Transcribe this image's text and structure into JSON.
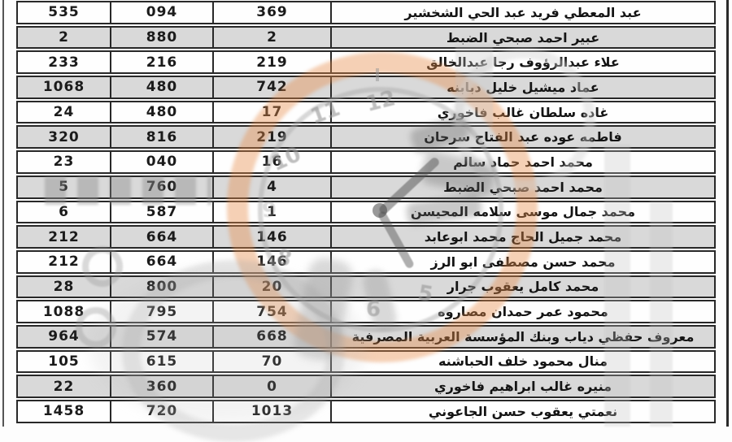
{
  "table": {
    "rows": [
      {
        "c1": "535",
        "c2": "094",
        "c3": "369",
        "name": "عبد المعطي فريد عبد الحي الشخشير"
      },
      {
        "c1": "2",
        "c2": "880",
        "c3": "2",
        "name": "عبير احمد صبحي الضبط"
      },
      {
        "c1": "233",
        "c2": "216",
        "c3": "219",
        "name": "علاء عبدالرؤوف رجا عبدالخالق"
      },
      {
        "c1": "1068",
        "c2": "480",
        "c3": "742",
        "name": "عماد ميشيل خليل دبابنه"
      },
      {
        "c1": "24",
        "c2": "480",
        "c3": "17",
        "name": "غاده سلطان غالب فاخوري"
      },
      {
        "c1": "320",
        "c2": "816",
        "c3": "219",
        "name": "فاطمه عوده عبد الفتاح سرحان"
      },
      {
        "c1": "23",
        "c2": "040",
        "c3": "16",
        "name": "محمد احمد حماد سالم"
      },
      {
        "c1": "5",
        "c2": "760",
        "c3": "4",
        "name": "محمد احمد صبحي الضبط"
      },
      {
        "c1": "6",
        "c2": "587",
        "c3": "1",
        "name": "محمد جمال موسى سلامه المحيسن"
      },
      {
        "c1": "212",
        "c2": "664",
        "c3": "146",
        "name": "محمد جميل الحاج محمد ابوعابد"
      },
      {
        "c1": "212",
        "c2": "664",
        "c3": "146",
        "name": "محمد حسن مصطفى ابو الرز"
      },
      {
        "c1": "28",
        "c2": "800",
        "c3": "20",
        "name": "محمد كامل يعقوب جرار"
      },
      {
        "c1": "1088",
        "c2": "795",
        "c3": "754",
        "name": "محمود عمر حمدان مصاروه"
      },
      {
        "c1": "964",
        "c2": "574",
        "c3": "668",
        "name": "معروف حفظي دياب وبنك المؤسسة العربية المصرفية"
      },
      {
        "c1": "105",
        "c2": "615",
        "c3": "70",
        "name": "منال محمود خلف الحباشنه"
      },
      {
        "c1": "22",
        "c2": "360",
        "c3": "0",
        "name": "منيره غالب ابراهيم فاخوري"
      },
      {
        "c1": "1458",
        "c2": "720",
        "c3": "1013",
        "name": "نعمتي يعقوب حسن الجاعوني"
      }
    ]
  },
  "watermark": {
    "clock_numbers": {
      "n12": "12",
      "n11": "11",
      "n10": "10",
      "n9": "9",
      "n8": "8",
      "n6": "6",
      "n5": "5"
    },
    "accent_orange": "#e98d48",
    "clock_gray": "#a8a8a8"
  }
}
